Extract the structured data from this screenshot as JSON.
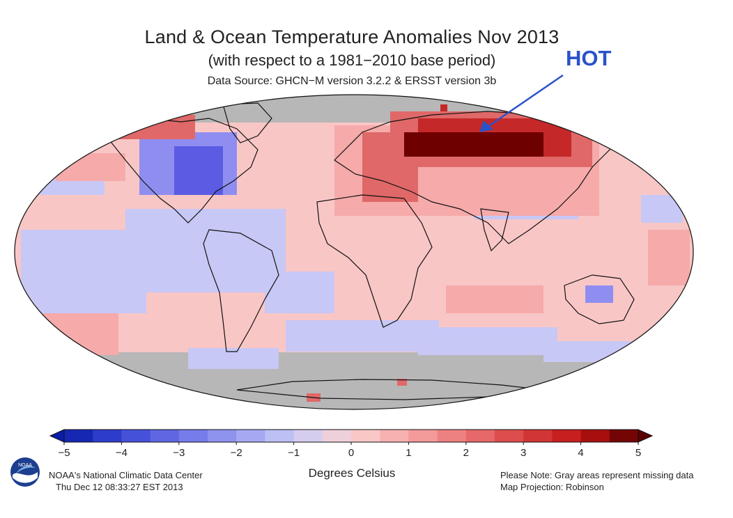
{
  "map": {
    "title": "Land & Ocean Temperature Anomalies Nov 2013",
    "subtitle": "(with respect to a 1981−2010 base period)",
    "source": "Data Source: GHCN−M version 3.2.2 & ERSST version 3b",
    "projection_label": "Map Projection: Robinson",
    "annotation": {
      "text": "HOT",
      "color": "#2a52c9"
    },
    "colors": {
      "missing": "#b7b7b7",
      "ocean_neutral": "#f9c6c6",
      "cold_light": "#c7c8f5",
      "cold": "#8f8ef0",
      "cold_strong": "#5b5be3",
      "warm_light": "#f6aaaa",
      "warm": "#e06868",
      "warm_strong": "#c52828",
      "hot_extreme": "#6e0000"
    }
  },
  "colorbar": {
    "title": "Degrees Celsius",
    "ticks": [
      "−5",
      "−4",
      "−3",
      "−2",
      "−1",
      "0",
      "1",
      "2",
      "3",
      "4",
      "5"
    ],
    "stops": [
      "#0a1da8",
      "#3a46d6",
      "#6a70e6",
      "#9a9ef0",
      "#c8cbf7",
      "#fbd2d2",
      "#f6a6a6",
      "#ea7575",
      "#d84040",
      "#c11414",
      "#5a0000"
    ]
  },
  "footer": {
    "org": "NOAA's National Climatic Data Center",
    "timestamp": "Thu Dec 12 08:33:27 EST 2013",
    "note": "Please Note: Gray areas represent missing data",
    "logo_text": "NOAA",
    "logo_icon": "noaa-logo-icon"
  }
}
